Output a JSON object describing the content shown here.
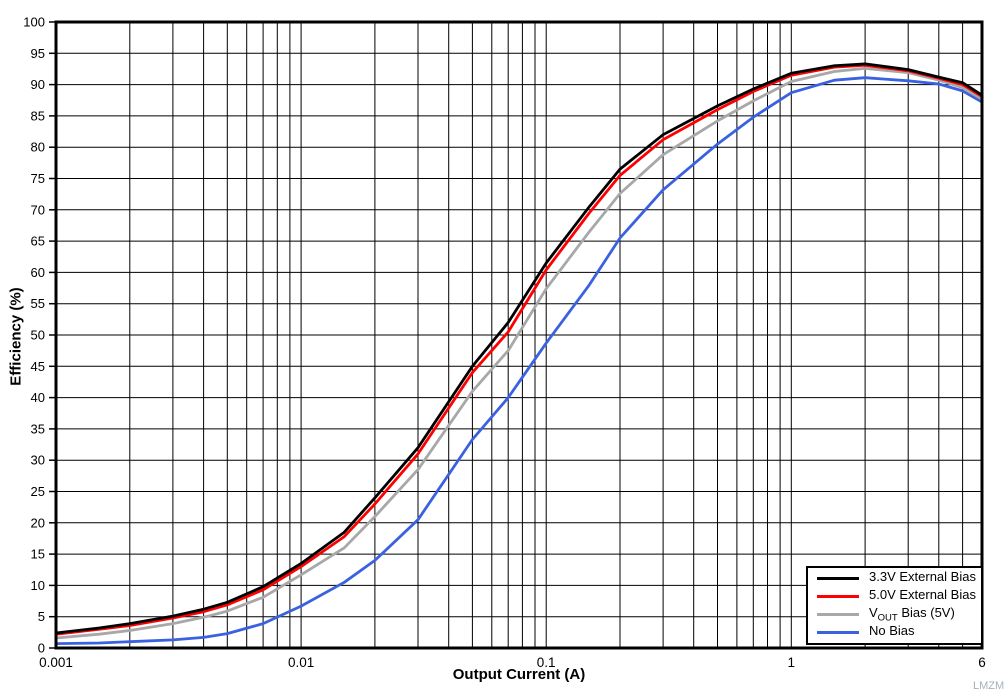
{
  "axes": {
    "x_label": "Output Current (A)",
    "y_label": "Efficiency (%)"
  },
  "watermark": "LMZM",
  "legend": {
    "position": "bottom-right",
    "items": [
      {
        "label_pre": "3.3V External Bias",
        "label_sub": "",
        "label_post": "",
        "color": "#000000"
      },
      {
        "label_pre": "5.0V External Bias",
        "label_sub": "",
        "label_post": "",
        "color": "#ff0000"
      },
      {
        "label_pre": "V",
        "label_sub": "OUT",
        "label_post": " Bias (5V)",
        "color": "#a8a8a8"
      },
      {
        "label_pre": "No Bias",
        "label_sub": "",
        "label_post": "",
        "color": "#3a62e0"
      }
    ]
  },
  "chart_data": {
    "type": "line",
    "title": "",
    "xlabel": "Output Current (A)",
    "ylabel": "Efficiency (%)",
    "x_scale": "log",
    "x_range": [
      0.001,
      6
    ],
    "y_range": [
      0,
      100
    ],
    "y_tick_step": 5,
    "grid": true,
    "legend_position": "bottom-right",
    "x_ticks": [
      {
        "value": 0.001,
        "label": "0.001"
      },
      {
        "value": 0.01,
        "label": "0.01"
      },
      {
        "value": 0.1,
        "label": "0.1"
      },
      {
        "value": 1,
        "label": "1"
      },
      {
        "value": 6,
        "label": "6"
      }
    ],
    "x": [
      0.001,
      0.0015,
      0.002,
      0.003,
      0.004,
      0.005,
      0.007,
      0.01,
      0.015,
      0.02,
      0.03,
      0.05,
      0.07,
      0.1,
      0.15,
      0.2,
      0.3,
      0.5,
      0.7,
      1,
      1.5,
      2,
      3,
      4,
      5,
      6
    ],
    "series": [
      {
        "name": "3.3V External Bias",
        "color": "#000000",
        "values": [
          2.4,
          3.2,
          3.9,
          5.1,
          6.2,
          7.3,
          9.8,
          13.5,
          18.5,
          24,
          32,
          45,
          52,
          61.5,
          70.5,
          76.5,
          82,
          86.6,
          89.3,
          91.8,
          93,
          93.3,
          92.4,
          91.2,
          90.3,
          88.3
        ]
      },
      {
        "name": "5.0V External Bias",
        "color": "#ff0000",
        "values": [
          2.2,
          3.0,
          3.6,
          4.8,
          5.8,
          6.9,
          9.3,
          13,
          17.8,
          23,
          31,
          44,
          50.5,
          60.4,
          69.5,
          75.5,
          81.2,
          86,
          88.9,
          91.5,
          92.8,
          93.1,
          92.2,
          91,
          90,
          88.1
        ]
      },
      {
        "name": "VOUT Bias (5V)",
        "color": "#a8a8a8",
        "values": [
          1.6,
          2.2,
          2.8,
          3.9,
          4.9,
          5.9,
          8.1,
          11.7,
          16,
          21,
          28.5,
          41,
          47.5,
          57.4,
          66.5,
          72.6,
          78.8,
          84.2,
          87.4,
          90.5,
          92.1,
          92.6,
          91.9,
          90.7,
          89.5,
          87.7
        ]
      },
      {
        "name": "No Bias",
        "color": "#3a62e0",
        "values": [
          0.7,
          0.8,
          1.0,
          1.3,
          1.7,
          2.3,
          3.9,
          6.7,
          10.5,
          14,
          20.5,
          33.3,
          40,
          48.7,
          58,
          65.5,
          73.2,
          80.5,
          84.8,
          88.7,
          90.7,
          91.1,
          90.6,
          90.1,
          89,
          87.2
        ]
      }
    ]
  }
}
